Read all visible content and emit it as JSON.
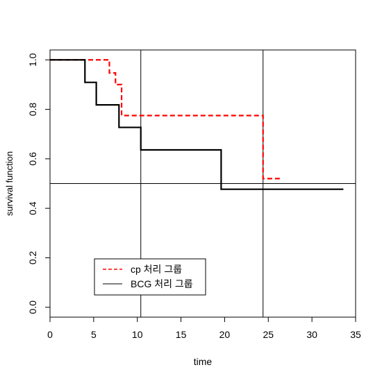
{
  "chart_data": {
    "type": "line",
    "step": true,
    "xlabel": "time",
    "ylabel": "survival function",
    "xlim": [
      0,
      35
    ],
    "ylim": [
      -0.04,
      1.04
    ],
    "xticks": [
      0,
      5,
      10,
      15,
      20,
      25,
      30,
      35
    ],
    "yticks": [
      0.0,
      0.2,
      0.4,
      0.6,
      0.8,
      1.0
    ],
    "xtick_labels": [
      "0",
      "5",
      "10",
      "15",
      "20",
      "25",
      "30",
      "35"
    ],
    "ytick_labels": [
      "0.0",
      "0.2",
      "0.4",
      "0.6",
      "0.8",
      "1.0"
    ],
    "series": [
      {
        "name": "cp 처리 그룹",
        "color": "#ff0000",
        "linestyle": "dashed",
        "x": [
          0,
          6.8,
          7.5,
          8.2,
          24.4,
          26.5
        ],
        "y": [
          1.0,
          0.947,
          0.9,
          0.775,
          0.52,
          0.52
        ]
      },
      {
        "name": "BCG 처리 그룹",
        "color": "#000000",
        "linestyle": "solid",
        "x": [
          0,
          4.0,
          5.3,
          7.9,
          10.4,
          19.6,
          33.6
        ],
        "y": [
          1.0,
          0.909,
          0.818,
          0.727,
          0.636,
          0.477,
          0.477
        ]
      }
    ],
    "reference_lines": {
      "vertical": [
        10.4,
        24.4
      ],
      "horizontal": [
        0.5
      ]
    },
    "legend": {
      "placement": "bottom-left",
      "entries": [
        {
          "label": "cp 처리 그룹",
          "color": "#ff0000",
          "linestyle": "dashed"
        },
        {
          "label": "BCG 처리 그룹",
          "color": "#555555",
          "linestyle": "solid"
        }
      ]
    },
    "grid": false
  }
}
